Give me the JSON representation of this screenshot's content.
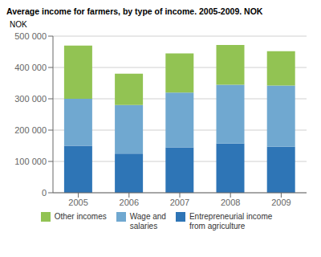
{
  "chart_data": {
    "type": "bar",
    "title": "Average income for farmers, by type of income. 2005-2009. NOK",
    "ylabel": "NOK",
    "categories": [
      "2005",
      "2006",
      "2007",
      "2008",
      "2009"
    ],
    "series": [
      {
        "name": "Entrepreneurial income\nfrom agriculture",
        "color": "#2e75b6",
        "values": [
          150000,
          125000,
          145000,
          157000,
          147000
        ]
      },
      {
        "name": "Wage and\nsalaries",
        "color": "#70a8d0",
        "values": [
          150000,
          155000,
          175000,
          188000,
          195000
        ]
      },
      {
        "name": "Other incomes",
        "color": "#92c353",
        "values": [
          170000,
          100000,
          125000,
          127000,
          110000
        ]
      }
    ],
    "ylim": [
      0,
      500000
    ],
    "yticks": [
      0,
      {
        "value": 100000,
        "label": "100 000"
      },
      {
        "value": 200000,
        "label": "200 000"
      },
      {
        "value": 300000,
        "label": "300 000"
      },
      {
        "value": 400000,
        "label": "400 000"
      },
      {
        "value": 500000,
        "label": "500 000"
      }
    ],
    "stacked": true,
    "grid": true,
    "legend": "bottom"
  }
}
